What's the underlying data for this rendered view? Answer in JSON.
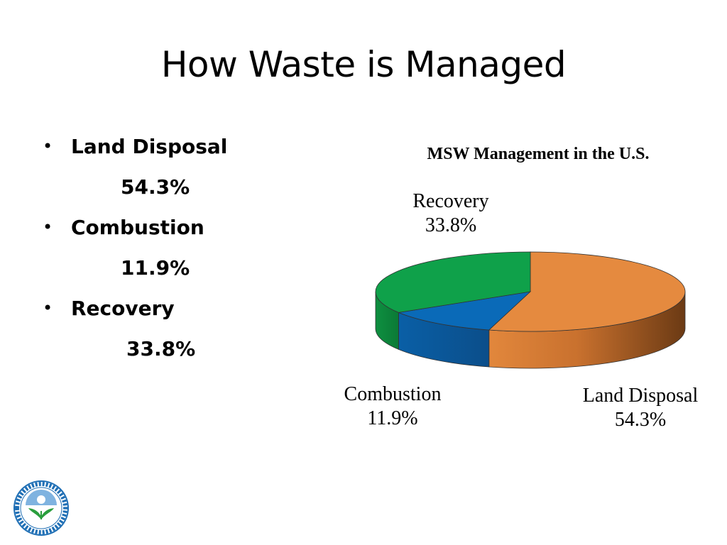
{
  "slide": {
    "title": "How Waste is Managed"
  },
  "bullets": [
    {
      "label": "Land Disposal",
      "value": "54.3%"
    },
    {
      "label": "Combustion",
      "value": "11.9%"
    },
    {
      "label": "Recovery",
      "value": "33.8%"
    }
  ],
  "logo": {
    "name": "United States Environmental Protection Agency",
    "icon": "epa-seal-icon"
  },
  "chart_data": {
    "type": "pie",
    "title": "MSW Management in the U.S.",
    "style": "3d",
    "slices": [
      {
        "label": "Land Disposal",
        "value": 54.3,
        "display": "54.3%",
        "color": "#E58A3F"
      },
      {
        "label": "Combustion",
        "value": 11.9,
        "display": "11.9%",
        "color": "#0A6AB8"
      },
      {
        "label": "Recovery",
        "value": 33.8,
        "display": "33.8%",
        "color": "#0FA14A"
      }
    ],
    "legend": "none",
    "data_labels": "outside"
  }
}
